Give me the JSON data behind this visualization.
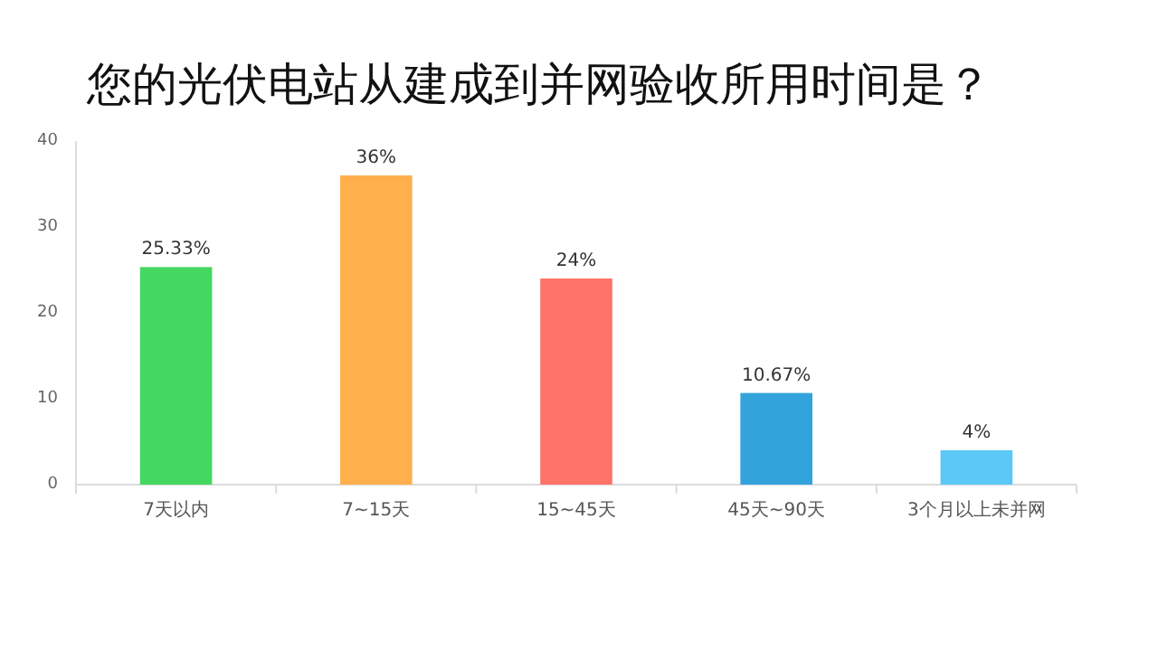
{
  "chart_data": {
    "type": "bar",
    "title": "您的光伏电站从建成到并网验收所用时间是？",
    "categories": [
      "7天以内",
      "7~15天",
      "15~45天",
      "45天~90天",
      "3个月以上未并网"
    ],
    "values": [
      25.33,
      36,
      24,
      10.67,
      4
    ],
    "colors": [
      "#44d860",
      "#ffb04c",
      "#ff7468",
      "#33a3dc",
      "#5bc8f8"
    ],
    "value_labels": [
      "25.33%",
      "36%",
      "24%",
      "10.67%",
      "4%"
    ],
    "ylim": [
      0,
      40
    ],
    "yticks": [
      0,
      10,
      20,
      30,
      40
    ],
    "grid": false
  }
}
